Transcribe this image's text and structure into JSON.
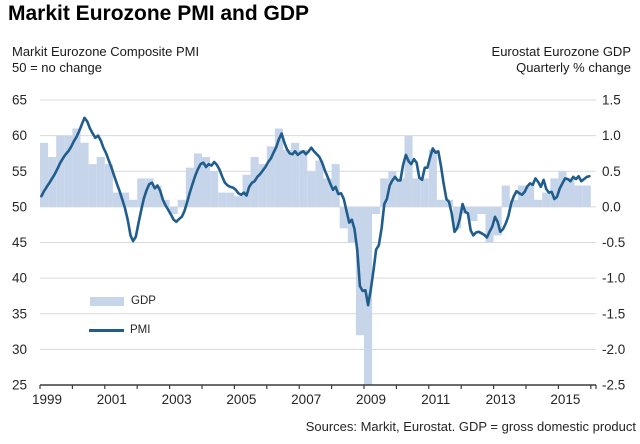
{
  "header": {
    "title": "Markit Eurozone PMI and GDP",
    "left_subtitle_line1": "Markit Eurozone Composite PMI",
    "left_subtitle_line2": "50 = no change",
    "right_subtitle_line1": "Eurostat Eurozone GDP",
    "right_subtitle_line2": "Quarterly % change"
  },
  "legend": {
    "gdp_label": "GDP",
    "pmi_label": "PMI"
  },
  "footer": {
    "source": "Sources: Markit, Eurostat. GDP = gross domestic product"
  },
  "colors": {
    "gdp_bar": "#c6d5ea",
    "pmi_line": "#215d8c",
    "gridline": "#d9d9d9",
    "axis": "#3c3c3c",
    "tick_text": "#262626"
  },
  "chart_data": {
    "type": "bar+line",
    "title": "Markit Eurozone PMI and GDP",
    "left_axis": {
      "label": "Markit Eurozone Composite PMI, 50 = no change",
      "ticks": [
        "65",
        "60",
        "55",
        "50",
        "45",
        "40",
        "35",
        "30",
        "25"
      ],
      "range": [
        25,
        65
      ],
      "grid": true
    },
    "right_axis": {
      "label": "Eurostat Eurozone GDP, Quarterly % change",
      "ticks": [
        "1.5",
        "1.0",
        "0.5",
        "0.0",
        "-0.5",
        "-1.0",
        "-1.5",
        "-2.0",
        "-2.5"
      ],
      "range": [
        -2.5,
        1.5
      ]
    },
    "x_axis": {
      "labels": [
        "1999",
        "2001",
        "2003",
        "2005",
        "2007",
        "2009",
        "2011",
        "2013",
        "2015"
      ],
      "label_years": [
        1999,
        2001,
        2003,
        2005,
        2007,
        2009,
        2011,
        2013,
        2015
      ],
      "tick_years_start": 1999,
      "tick_years_end": 2016,
      "range_years": [
        1999,
        2016.2
      ]
    },
    "legend_position": "inside-lower-left",
    "series": [
      {
        "name": "GDP",
        "type": "bar",
        "axis": "right",
        "frequency": "quarterly",
        "start_year": 1999,
        "values": [
          0.9,
          0.7,
          1.0,
          1.0,
          1.1,
          0.9,
          0.6,
          0.7,
          0.6,
          0.2,
          0.2,
          0.1,
          0.4,
          0.4,
          0.3,
          0.1,
          -0.1,
          0.1,
          0.55,
          0.75,
          0.7,
          0.5,
          0.2,
          0.2,
          0.15,
          0.45,
          0.7,
          0.6,
          0.85,
          1.1,
          0.8,
          0.9,
          0.8,
          0.5,
          0.65,
          0.4,
          0.6,
          -0.3,
          -0.5,
          -1.8,
          -2.6,
          -0.1,
          0.4,
          0.5,
          0.4,
          1.0,
          0.4,
          0.4,
          0.8,
          0.1,
          0.1,
          -0.3,
          -0.1,
          -0.2,
          -0.1,
          -0.5,
          -0.4,
          0.3,
          0.1,
          0.3,
          0.3,
          0.1,
          0.2,
          0.4,
          0.5,
          0.4,
          0.3,
          0.3
        ]
      },
      {
        "name": "PMI",
        "type": "line",
        "axis": "left",
        "frequency": "monthly",
        "start_year": 1999,
        "values": [
          51.5,
          52.2,
          52.8,
          53.4,
          54.0,
          54.6,
          55.4,
          56.2,
          56.8,
          57.4,
          57.8,
          58.4,
          59.2,
          59.8,
          60.6,
          61.6,
          62.5,
          62.0,
          61.0,
          60.3,
          59.7,
          60.0,
          59.3,
          58.3,
          57.5,
          56.5,
          55.5,
          54.3,
          53.2,
          52.2,
          51.0,
          49.8,
          48.2,
          46.0,
          45.2,
          45.8,
          47.8,
          49.6,
          51.2,
          52.4,
          53.2,
          53.4,
          52.6,
          53.0,
          52.3,
          51.0,
          50.2,
          49.6,
          48.9,
          48.2,
          47.9,
          48.3,
          48.6,
          49.4,
          50.7,
          52.0,
          53.2,
          54.4,
          55.3,
          56.0,
          56.2,
          55.6,
          56.0,
          55.8,
          56.3,
          55.9,
          55.2,
          54.2,
          53.4,
          53.0,
          52.8,
          52.7,
          52.4,
          51.9,
          51.7,
          52.0,
          51.6,
          52.8,
          53.4,
          53.6,
          54.2,
          54.6,
          55.1,
          55.6,
          56.3,
          56.8,
          57.6,
          58.4,
          59.5,
          60.3,
          59.0,
          58.1,
          57.5,
          57.4,
          57.8,
          57.3,
          57.6,
          57.8,
          57.4,
          57.8,
          58.3,
          57.8,
          57.4,
          57.0,
          56.2,
          55.1,
          54.2,
          53.3,
          52.4,
          52.8,
          51.8,
          51.9,
          51.1,
          49.5,
          47.8,
          48.2,
          46.9,
          43.9,
          38.9,
          38.2,
          38.3,
          36.2,
          38.3,
          41.1,
          44.0,
          44.6,
          47.0,
          50.4,
          51.1,
          53.0,
          53.7,
          54.2,
          53.7,
          53.7,
          55.9,
          57.3,
          56.4,
          56.0,
          56.7,
          56.2,
          54.1,
          53.8,
          55.5,
          55.5,
          57.0,
          58.2,
          57.6,
          57.8,
          55.8,
          53.3,
          51.1,
          50.7,
          49.1,
          46.5,
          47.0,
          48.3,
          50.4,
          49.3,
          49.1,
          46.7,
          46.0,
          46.4,
          46.5,
          46.3,
          46.1,
          45.7,
          46.5,
          47.2,
          48.6,
          47.9,
          46.5,
          46.9,
          47.7,
          48.7,
          50.5,
          51.5,
          52.2,
          51.9,
          51.7,
          52.1,
          52.9,
          53.3,
          53.1,
          54.0,
          53.5,
          52.8,
          53.8,
          52.5,
          52.0,
          52.1,
          51.1,
          51.4,
          52.6,
          53.3,
          54.0,
          53.9,
          53.6,
          54.2,
          53.9,
          54.3,
          53.6,
          53.9,
          54.2,
          54.3
        ]
      }
    ]
  }
}
